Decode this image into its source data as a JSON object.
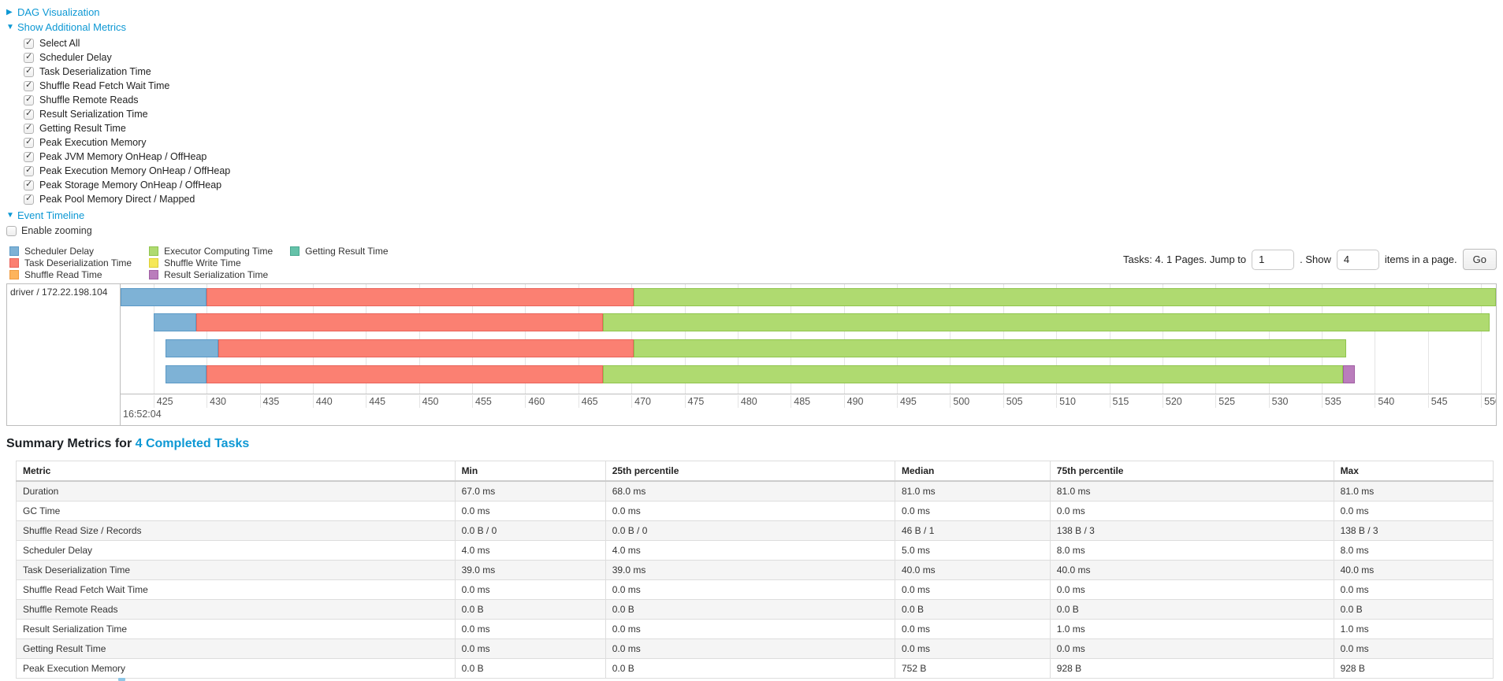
{
  "controls": {
    "dag_link": "DAG Visualization",
    "metrics_link": "Show Additional Metrics",
    "timeline_link": "Event Timeline",
    "enable_zooming_label": "Enable zooming",
    "metric_checkboxes": [
      "Select All",
      "Scheduler Delay",
      "Task Deserialization Time",
      "Shuffle Read Fetch Wait Time",
      "Shuffle Remote Reads",
      "Result Serialization Time",
      "Getting Result Time",
      "Peak Execution Memory",
      "Peak JVM Memory OnHeap / OffHeap",
      "Peak Execution Memory OnHeap / OffHeap",
      "Peak Storage Memory OnHeap / OffHeap",
      "Peak Pool Memory Direct / Mapped"
    ]
  },
  "colors": {
    "link_blue": "#0d98d4",
    "scheduler_delay": {
      "fill": "#7EB2D6",
      "border": "#5B99C6"
    },
    "deserialization": {
      "fill": "#FB8072",
      "border": "#E8635A"
    },
    "shuffle_read": {
      "fill": "#FDB45C",
      "border": "#EF9A3F"
    },
    "computing": {
      "fill": "#AFDA70",
      "border": "#8FC44D"
    },
    "shuffle_write": {
      "fill": "#F6E857",
      "border": "#DCCF35"
    },
    "result_serialization": {
      "fill": "#BA7DBC",
      "border": "#A05FA3"
    },
    "getting_result": {
      "fill": "#65C2A9",
      "border": "#48A890"
    }
  },
  "legend": {
    "columns": [
      [
        {
          "key": "scheduler_delay",
          "label": "Scheduler Delay"
        },
        {
          "key": "deserialization",
          "label": "Task Deserialization Time"
        },
        {
          "key": "shuffle_read",
          "label": "Shuffle Read Time"
        }
      ],
      [
        {
          "key": "computing",
          "label": "Executor Computing Time"
        },
        {
          "key": "shuffle_write",
          "label": "Shuffle Write Time"
        },
        {
          "key": "result_serialization",
          "label": "Result Serialization Time"
        }
      ],
      [
        {
          "key": "getting_result",
          "label": "Getting Result Time"
        }
      ]
    ]
  },
  "pagination": {
    "prefix_text": "Tasks: 4. 1 Pages. Jump to",
    "jump_value": "1",
    "mid_text": ". Show",
    "show_value": "4",
    "suffix_text": "items in a page.",
    "go_label": "Go"
  },
  "timeline": {
    "row_label": "driver / 172.22.198.104",
    "major_label": "16:52:04",
    "window": {
      "start": 421.9,
      "end": 551.4
    },
    "ticks": [
      425,
      430,
      435,
      440,
      445,
      450,
      455,
      460,
      465,
      470,
      475,
      480,
      485,
      490,
      495,
      500,
      505,
      510,
      515,
      520,
      525,
      530,
      535,
      540,
      545,
      550
    ],
    "tasks": [
      {
        "segments": [
          {
            "type": "scheduler_delay",
            "start": 421.9,
            "end": 430.0
          },
          {
            "type": "deserialization",
            "start": 430.0,
            "end": 470.2
          },
          {
            "type": "computing",
            "start": 470.2,
            "end": 551.4
          }
        ]
      },
      {
        "segments": [
          {
            "type": "scheduler_delay",
            "start": 425.0,
            "end": 429.0
          },
          {
            "type": "deserialization",
            "start": 429.0,
            "end": 467.3
          },
          {
            "type": "computing",
            "start": 467.3,
            "end": 550.8
          }
        ]
      },
      {
        "segments": [
          {
            "type": "scheduler_delay",
            "start": 426.1,
            "end": 431.1
          },
          {
            "type": "deserialization",
            "start": 431.1,
            "end": 470.2
          },
          {
            "type": "computing",
            "start": 470.2,
            "end": 537.3
          }
        ]
      },
      {
        "segments": [
          {
            "type": "scheduler_delay",
            "start": 426.1,
            "end": 430.0
          },
          {
            "type": "deserialization",
            "start": 430.0,
            "end": 467.3
          },
          {
            "type": "computing",
            "start": 467.3,
            "end": 537.0
          },
          {
            "type": "result_serialization",
            "start": 537.0,
            "end": 538.1
          }
        ]
      }
    ]
  },
  "summary": {
    "title_prefix": "Summary Metrics for",
    "title_link": "4 Completed Tasks",
    "columns": [
      "Metric",
      "Min",
      "25th percentile",
      "Median",
      "75th percentile",
      "Max"
    ],
    "rows": [
      {
        "metric": "Duration",
        "values": [
          "67.0 ms",
          "68.0 ms",
          "81.0 ms",
          "81.0 ms",
          "81.0 ms"
        ]
      },
      {
        "metric": "GC Time",
        "values": [
          "0.0 ms",
          "0.0 ms",
          "0.0 ms",
          "0.0 ms",
          "0.0 ms"
        ]
      },
      {
        "metric": "Shuffle Read Size / Records",
        "values": [
          "0.0 B / 0",
          "0.0 B / 0",
          "46 B / 1",
          "138 B / 3",
          "138 B / 3"
        ]
      },
      {
        "metric": "Scheduler Delay",
        "values": [
          "4.0 ms",
          "4.0 ms",
          "5.0 ms",
          "8.0 ms",
          "8.0 ms"
        ]
      },
      {
        "metric": "Task Deserialization Time",
        "values": [
          "39.0 ms",
          "39.0 ms",
          "40.0 ms",
          "40.0 ms",
          "40.0 ms"
        ]
      },
      {
        "metric": "Shuffle Read Fetch Wait Time",
        "values": [
          "0.0 ms",
          "0.0 ms",
          "0.0 ms",
          "0.0 ms",
          "0.0 ms"
        ]
      },
      {
        "metric": "Shuffle Remote Reads",
        "values": [
          "0.0 B",
          "0.0 B",
          "0.0 B",
          "0.0 B",
          "0.0 B"
        ]
      },
      {
        "metric": "Result Serialization Time",
        "values": [
          "0.0 ms",
          "0.0 ms",
          "0.0 ms",
          "1.0 ms",
          "1.0 ms"
        ]
      },
      {
        "metric": "Getting Result Time",
        "values": [
          "0.0 ms",
          "0.0 ms",
          "0.0 ms",
          "0.0 ms",
          "0.0 ms"
        ]
      },
      {
        "metric": "Peak Execution Memory",
        "values": [
          "0.0 B",
          "0.0 B",
          "752 B",
          "928 B",
          "928 B"
        ]
      }
    ]
  }
}
